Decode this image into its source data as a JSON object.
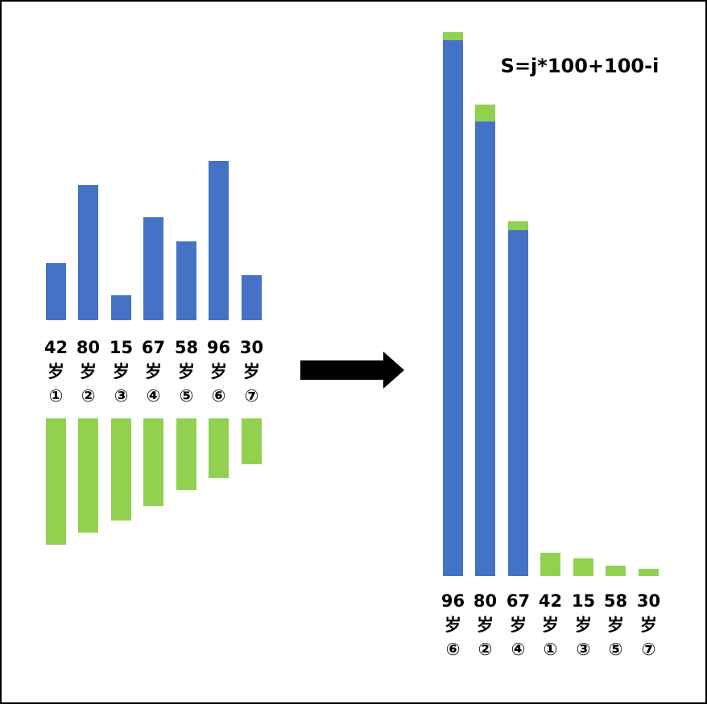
{
  "formula": "S=j*100+100-i",
  "before": {
    "items": [
      {
        "age": "42",
        "unit": "岁",
        "index": "①"
      },
      {
        "age": "80",
        "unit": "岁",
        "index": "②"
      },
      {
        "age": "15",
        "unit": "岁",
        "index": "③"
      },
      {
        "age": "67",
        "unit": "岁",
        "index": "④"
      },
      {
        "age": "58",
        "unit": "岁",
        "index": "⑤"
      },
      {
        "age": "96",
        "unit": "岁",
        "index": "⑥"
      },
      {
        "age": "30",
        "unit": "岁",
        "index": "⑦"
      }
    ]
  },
  "after": {
    "items": [
      {
        "age": "96",
        "unit": "岁",
        "index": "⑥"
      },
      {
        "age": "80",
        "unit": "岁",
        "index": "②"
      },
      {
        "age": "67",
        "unit": "岁",
        "index": "④"
      },
      {
        "age": "42",
        "unit": "岁",
        "index": "①"
      },
      {
        "age": "15",
        "unit": "岁",
        "index": "③"
      },
      {
        "age": "58",
        "unit": "岁",
        "index": "⑤"
      },
      {
        "age": "30",
        "unit": "岁",
        "index": "⑦"
      }
    ]
  }
}
